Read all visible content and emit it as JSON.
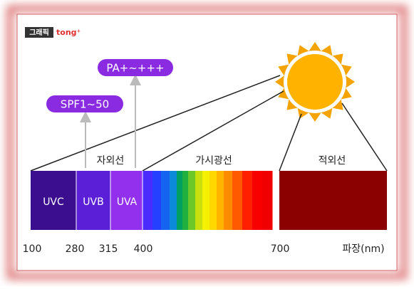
{
  "header": {
    "logo": "그래픽",
    "brand": "tong⁺"
  },
  "pills": {
    "pa": "PA+~+++",
    "spf": "SPF1~50"
  },
  "regions": {
    "uv": "자외선",
    "visible": "가시광선",
    "infrared": "적외선"
  },
  "bands": {
    "uvc": "UVC",
    "uvb": "UVB",
    "uva": "UVA"
  },
  "ticks": [
    100,
    280,
    315,
    400,
    700
  ],
  "unit": "파장(nm)"
}
